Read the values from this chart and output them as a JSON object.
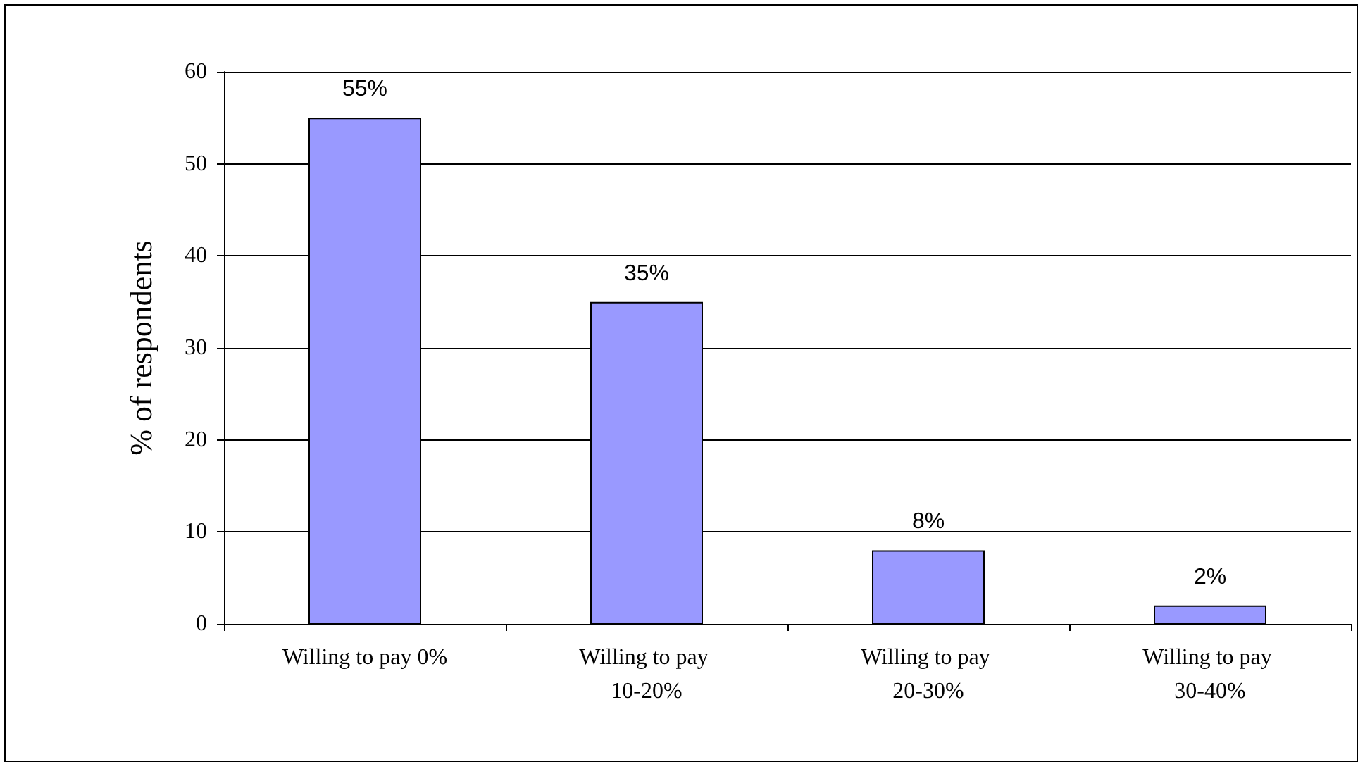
{
  "chart_data": {
    "type": "bar",
    "ylabel": "% of respondents",
    "categories": [
      "Willing to pay 0%",
      "Willing to pay 10-20%",
      "Willing to pay 20-30%",
      "Willing to pay 30-40%"
    ],
    "values": [
      55,
      35,
      8,
      2
    ],
    "value_labels": [
      "55%",
      "35%",
      "8%",
      "2%"
    ],
    "color": "#9999ff",
    "ylim": [
      0,
      60
    ],
    "yticks": [
      0,
      10,
      20,
      30,
      40,
      50,
      60
    ],
    "grid": "y"
  }
}
